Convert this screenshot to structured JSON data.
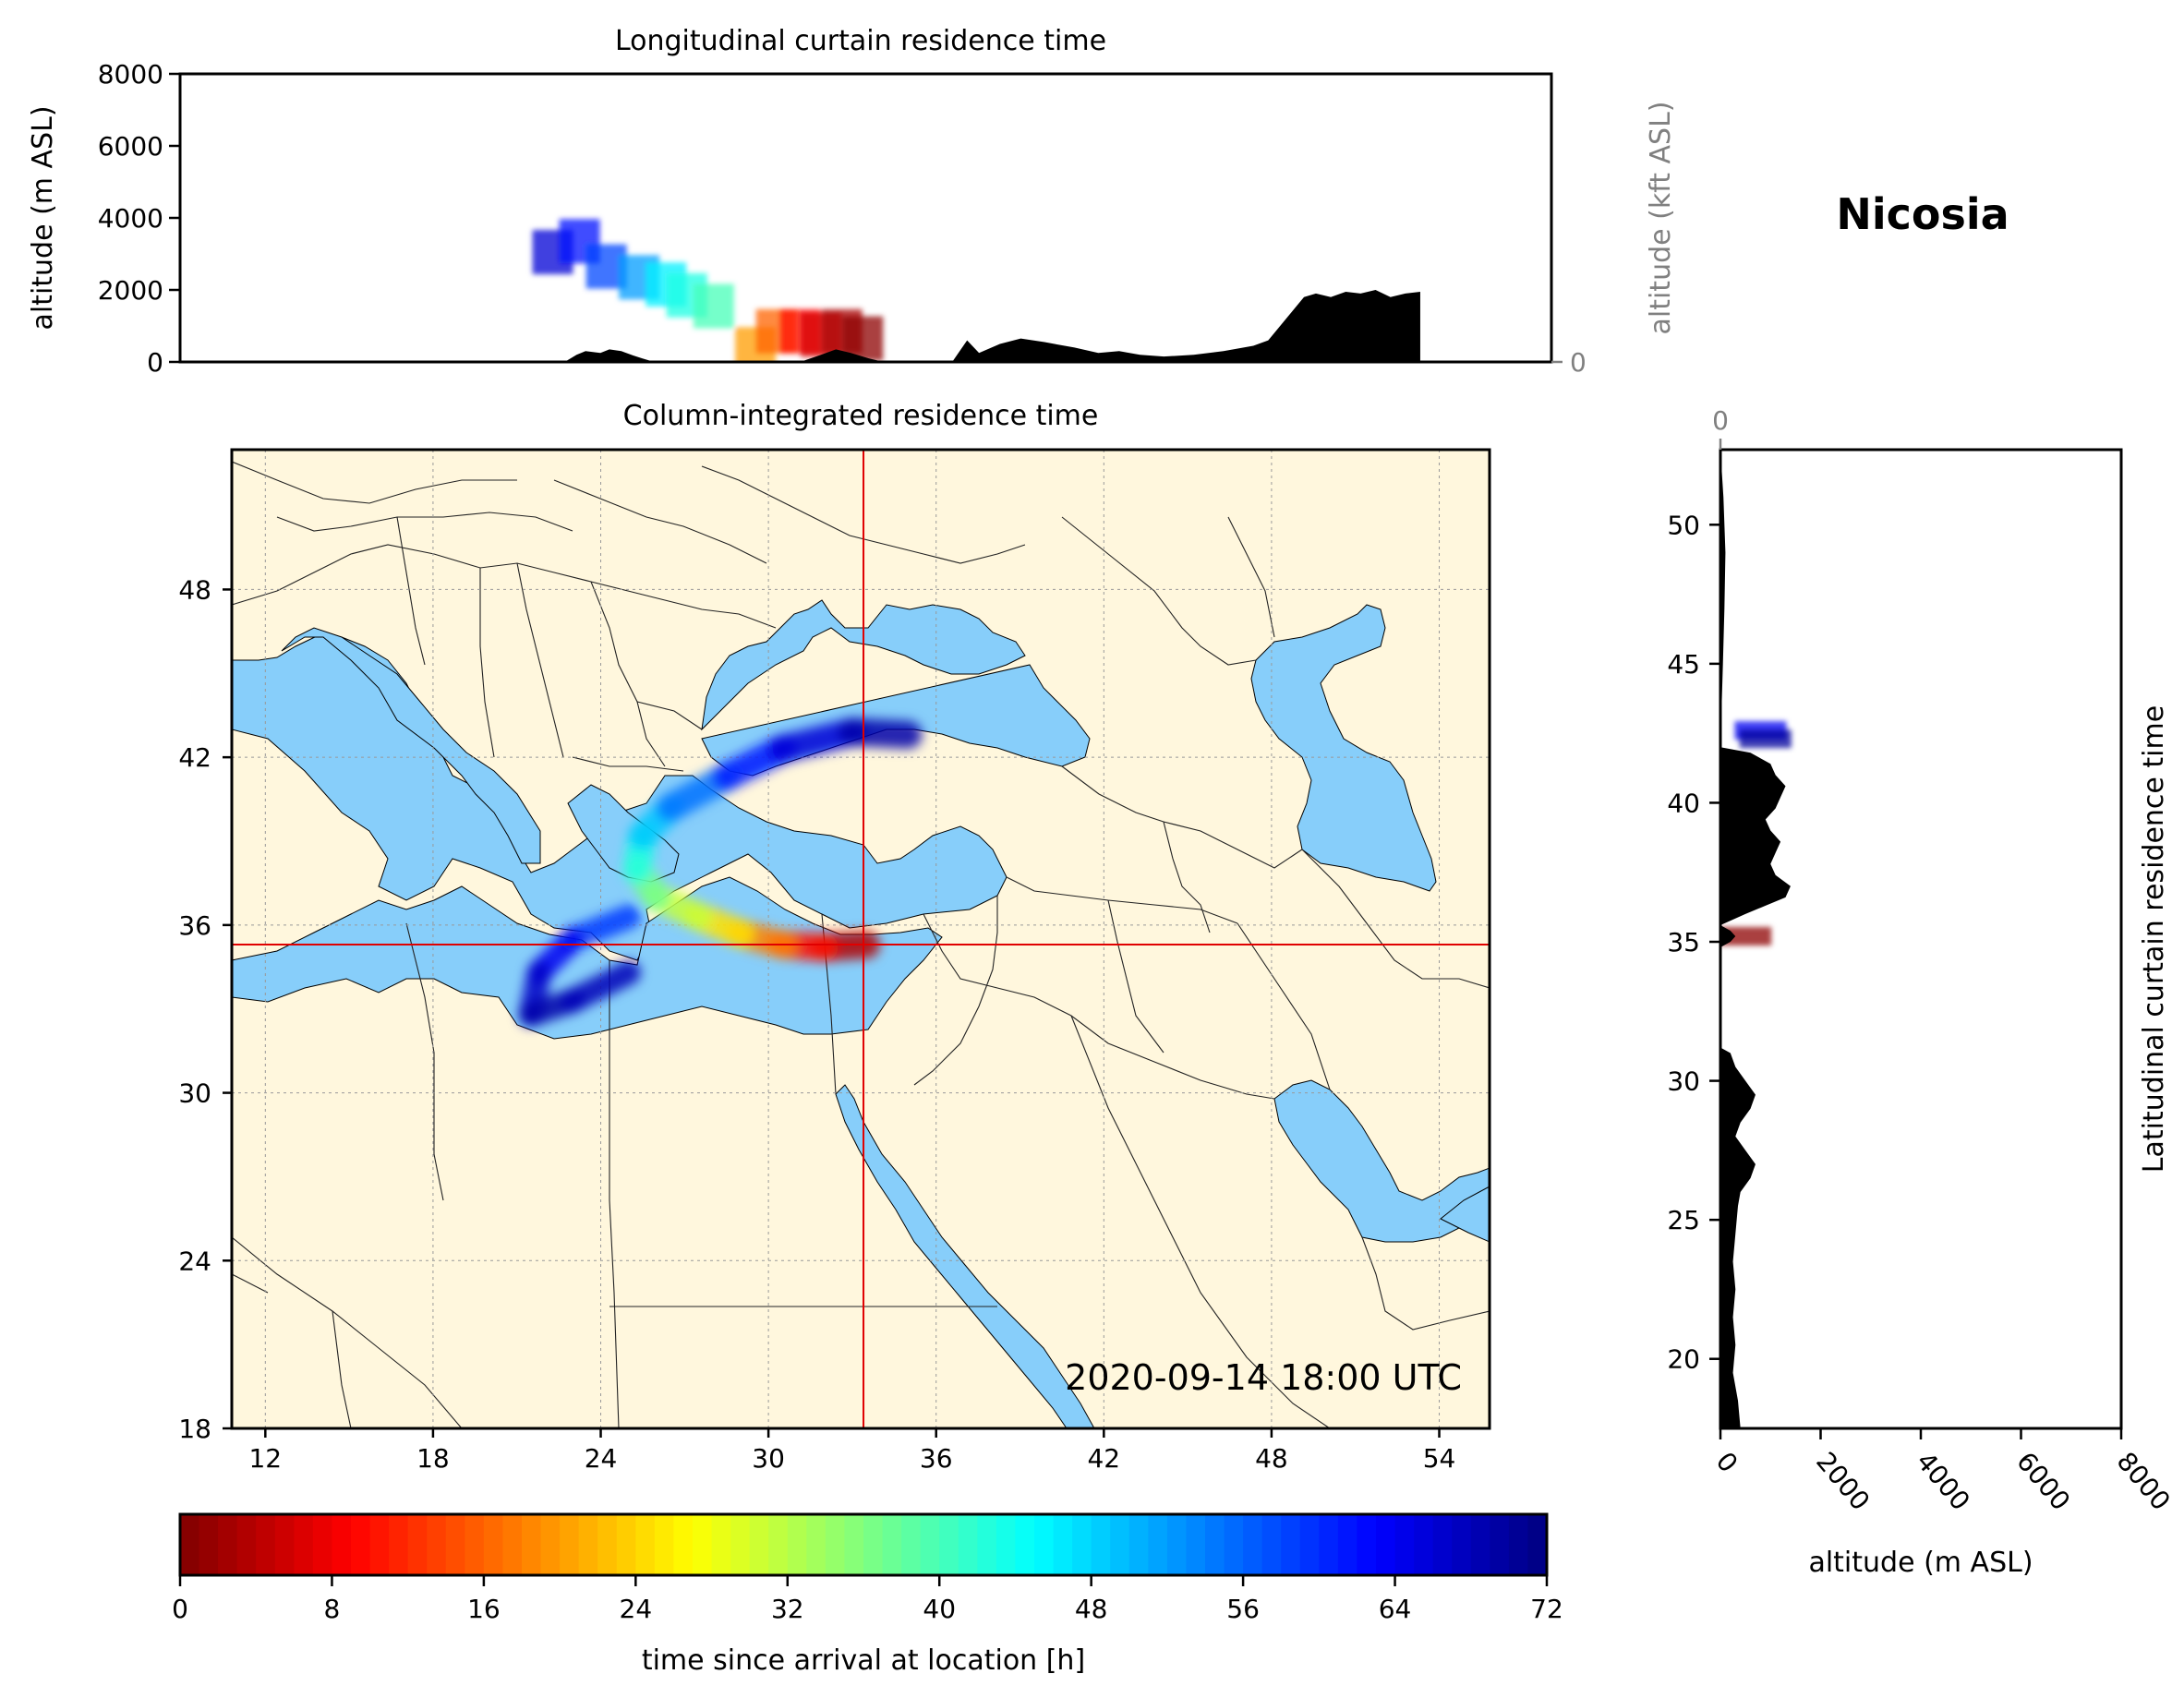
{
  "location_name": "Nicosia",
  "timestamp": "2020-09-14 18:00 UTC",
  "colors": {
    "marker_line": "#E00000",
    "water": "#87CEFA",
    "land": "#FFF7DD",
    "terrain": "#000000"
  },
  "chart_data": [
    {
      "id": "longitudinal-curtain",
      "type": "area",
      "title": "Longitudinal curtain residence time",
      "ylabel": "altitude (m ASL)",
      "y2label": "altitude (kft ASL)",
      "xlim": [
        10,
        56
      ],
      "ylim": [
        0,
        8000
      ],
      "yticks": [
        0,
        2000,
        4000,
        6000,
        8000
      ],
      "y2ticks": [
        0,
        50,
        100
      ],
      "grid": true,
      "terrain": {
        "lon": [
          22.9,
          23.3,
          23.6,
          24.1,
          24.4,
          24.8,
          25.2,
          25.5,
          25.9,
          30.8,
          31.5,
          32.0,
          32.5,
          33.1,
          33.6,
          35.9,
          36.4,
          36.8,
          37.5,
          38.2,
          39.0,
          40.0,
          40.8,
          41.5,
          42.2,
          43.0,
          44.0,
          45.0,
          46.0,
          46.5,
          46.9,
          47.3,
          47.7,
          48.1,
          48.6,
          49.1,
          49.6,
          50.1,
          50.6,
          51.1,
          51.6
        ],
        "alt": [
          0,
          200,
          300,
          250,
          350,
          300,
          180,
          100,
          0,
          0,
          200,
          350,
          250,
          100,
          0,
          0,
          600,
          250,
          500,
          650,
          550,
          400,
          250,
          300,
          200,
          150,
          200,
          300,
          450,
          600,
          1000,
          1400,
          1800,
          1900,
          1800,
          1950,
          1900,
          2000,
          1800,
          1900,
          1950
        ]
      },
      "plume": [
        {
          "lon": 22.5,
          "alt": 3000,
          "hours": 66
        },
        {
          "lon": 23.4,
          "alt": 3300,
          "hours": 62
        },
        {
          "lon": 24.3,
          "alt": 2600,
          "hours": 58
        },
        {
          "lon": 25.4,
          "alt": 2300,
          "hours": 52
        },
        {
          "lon": 26.3,
          "alt": 2100,
          "hours": 46
        },
        {
          "lon": 27.0,
          "alt": 1800,
          "hours": 43
        },
        {
          "lon": 27.9,
          "alt": 1500,
          "hours": 40
        },
        {
          "lon": 29.3,
          "alt": 300,
          "hours": 20
        },
        {
          "lon": 30.0,
          "alt": 800,
          "hours": 16
        },
        {
          "lon": 30.8,
          "alt": 800,
          "hours": 10
        },
        {
          "lon": 31.5,
          "alt": 700,
          "hours": 6
        },
        {
          "lon": 32.2,
          "alt": 800,
          "hours": 3
        },
        {
          "lon": 32.9,
          "alt": 600,
          "hours": 1
        }
      ]
    },
    {
      "id": "column-integrated",
      "type": "heatmap",
      "title": "Column-integrated residence time",
      "xlim": [
        10.8,
        55.8
      ],
      "ylim": [
        18,
        53
      ],
      "xticks": [
        12,
        18,
        24,
        30,
        36,
        42,
        48,
        54
      ],
      "yticks": [
        18,
        24,
        30,
        36,
        42,
        48
      ],
      "grid": true,
      "receptor": {
        "lon": 33.4,
        "lat": 35.3
      },
      "plume": [
        {
          "lon": 33.5,
          "lat": 35.3,
          "hours": 1
        },
        {
          "lon": 32.0,
          "lat": 35.2,
          "hours": 6
        },
        {
          "lon": 30.5,
          "lat": 35.3,
          "hours": 14
        },
        {
          "lon": 29.0,
          "lat": 35.7,
          "hours": 22
        },
        {
          "lon": 27.5,
          "lat": 36.3,
          "hours": 28
        },
        {
          "lon": 26.0,
          "lat": 37.0,
          "hours": 34
        },
        {
          "lon": 25.3,
          "lat": 38.0,
          "hours": 40
        },
        {
          "lon": 25.5,
          "lat": 39.2,
          "hours": 46
        },
        {
          "lon": 26.5,
          "lat": 40.2,
          "hours": 52
        },
        {
          "lon": 28.5,
          "lat": 41.3,
          "hours": 58
        },
        {
          "lon": 30.5,
          "lat": 42.3,
          "hours": 64
        },
        {
          "lon": 33.0,
          "lat": 42.9,
          "hours": 68
        },
        {
          "lon": 35.0,
          "lat": 42.8,
          "hours": 70
        }
      ],
      "plume_branch": [
        {
          "lon": 25.0,
          "lat": 36.3,
          "hours": 56
        },
        {
          "lon": 23.0,
          "lat": 35.5,
          "hours": 62
        },
        {
          "lon": 21.8,
          "lat": 34.3,
          "hours": 66
        },
        {
          "lon": 21.5,
          "lat": 32.8,
          "hours": 68
        },
        {
          "lon": 23.0,
          "lat": 33.3,
          "hours": 70
        },
        {
          "lon": 25.0,
          "lat": 34.3,
          "hours": 66
        }
      ]
    },
    {
      "id": "latitudinal-curtain",
      "type": "area",
      "title": "Latitudinal curtain residence time",
      "xlabel": "altitude (m ASL)",
      "xlim": [
        0,
        8000
      ],
      "x2lim": [
        0,
        105
      ],
      "xticks": [
        0,
        2000,
        4000,
        6000,
        8000
      ],
      "x2ticks": [
        0,
        50,
        100
      ],
      "ylim": [
        17.5,
        52.7
      ],
      "yticks": [
        20,
        25,
        30,
        35,
        40,
        45,
        50
      ],
      "grid": true,
      "terrain": {
        "lat": [
          17.5,
          18.5,
          19.5,
          20.5,
          21.5,
          22.5,
          23.5,
          24.5,
          25.5,
          26.0,
          26.5,
          27.0,
          27.5,
          28.0,
          28.5,
          29.0,
          29.5,
          30.0,
          30.5,
          31.0,
          31.2,
          34.8,
          35.0,
          35.2,
          35.4,
          35.6,
          36.0,
          36.3,
          36.6,
          37.0,
          37.4,
          37.8,
          38.2,
          38.6,
          39.0,
          39.4,
          39.8,
          40.2,
          40.6,
          41.0,
          41.4,
          41.8,
          42.0,
          45.0,
          47.0,
          49.0,
          51.0,
          52.7
        ],
        "alt": [
          400,
          350,
          250,
          300,
          250,
          300,
          250,
          300,
          350,
          400,
          600,
          700,
          500,
          300,
          400,
          600,
          700,
          500,
          300,
          200,
          0,
          0,
          200,
          300,
          200,
          0,
          500,
          900,
          1300,
          1400,
          1100,
          1000,
          1100,
          1200,
          1000,
          900,
          1100,
          1200,
          1300,
          1100,
          1000,
          600,
          0,
          50,
          80,
          100,
          60,
          0
        ]
      },
      "plume": [
        {
          "lat": 42.6,
          "alt": 800,
          "hours": 64
        },
        {
          "lat": 42.3,
          "alt": 900,
          "hours": 70
        },
        {
          "lat": 35.2,
          "alt": 500,
          "hours": 1
        }
      ]
    },
    {
      "id": "colorbar",
      "type": "heatmap",
      "xlabel": "time since arrival at location [h]",
      "xlim": [
        0,
        72
      ],
      "xticks": [
        0,
        8,
        16,
        24,
        32,
        40,
        48,
        56,
        64,
        72
      ],
      "colormap": "jet_r",
      "levels": 72
    }
  ]
}
